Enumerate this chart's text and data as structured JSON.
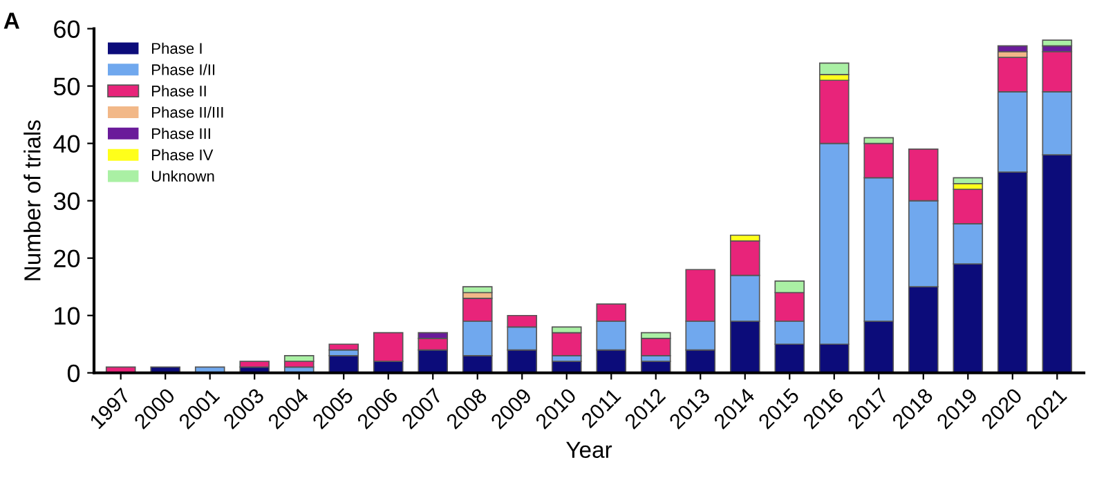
{
  "chart_data": {
    "type": "bar",
    "stacked": true,
    "xlabel": "Year",
    "ylabel": "Number of trials",
    "annotations": [
      "A"
    ],
    "categories": [
      "1997",
      "2000",
      "2001",
      "2003",
      "2004",
      "2005",
      "2006",
      "2007",
      "2008",
      "2009",
      "2010",
      "2011",
      "2012",
      "2013",
      "2014",
      "2015",
      "2016",
      "2017",
      "2018",
      "2019",
      "2020",
      "2021"
    ],
    "series": [
      {
        "name": "Phase I",
        "color": "#0c0c7a",
        "values": [
          0,
          1,
          0,
          1,
          0,
          3,
          2,
          4,
          3,
          4,
          2,
          4,
          2,
          4,
          9,
          5,
          5,
          9,
          15,
          19,
          35,
          38
        ]
      },
      {
        "name": "Phase I/II",
        "color": "#70a8ee",
        "values": [
          0,
          0,
          1,
          0,
          1,
          1,
          0,
          0,
          6,
          4,
          1,
          5,
          1,
          5,
          8,
          4,
          35,
          25,
          15,
          7,
          14,
          11
        ]
      },
      {
        "name": "Phase II",
        "color": "#e8247a",
        "values": [
          1,
          0,
          0,
          1,
          1,
          1,
          5,
          2,
          4,
          2,
          4,
          3,
          3,
          9,
          6,
          5,
          11,
          6,
          9,
          6,
          6,
          7
        ]
      },
      {
        "name": "Phase II/III",
        "color": "#f2b888",
        "values": [
          0,
          0,
          0,
          0,
          0,
          0,
          0,
          0,
          1,
          0,
          0,
          0,
          0,
          0,
          0,
          0,
          0,
          0,
          0,
          0,
          1,
          0
        ]
      },
      {
        "name": "Phase III",
        "color": "#6a1b9a",
        "values": [
          0,
          0,
          0,
          0,
          0,
          0,
          0,
          1,
          0,
          0,
          0,
          0,
          0,
          0,
          0,
          0,
          0,
          0,
          0,
          0,
          1,
          1
        ]
      },
      {
        "name": "Phase IV",
        "color": "#ffff1a",
        "values": [
          0,
          0,
          0,
          0,
          0,
          0,
          0,
          0,
          0,
          0,
          0,
          0,
          0,
          0,
          1,
          0,
          1,
          0,
          0,
          1,
          0,
          0
        ]
      },
      {
        "name": "Unknown",
        "color": "#aaf0a4",
        "values": [
          0,
          0,
          0,
          0,
          1,
          0,
          0,
          0,
          1,
          0,
          1,
          0,
          1,
          0,
          0,
          2,
          2,
          1,
          0,
          1,
          0,
          1
        ]
      }
    ],
    "ylim": [
      0,
      60
    ],
    "yticks": [
      0,
      10,
      20,
      30,
      40,
      50,
      60
    ],
    "grid": false,
    "legend": "top left"
  }
}
